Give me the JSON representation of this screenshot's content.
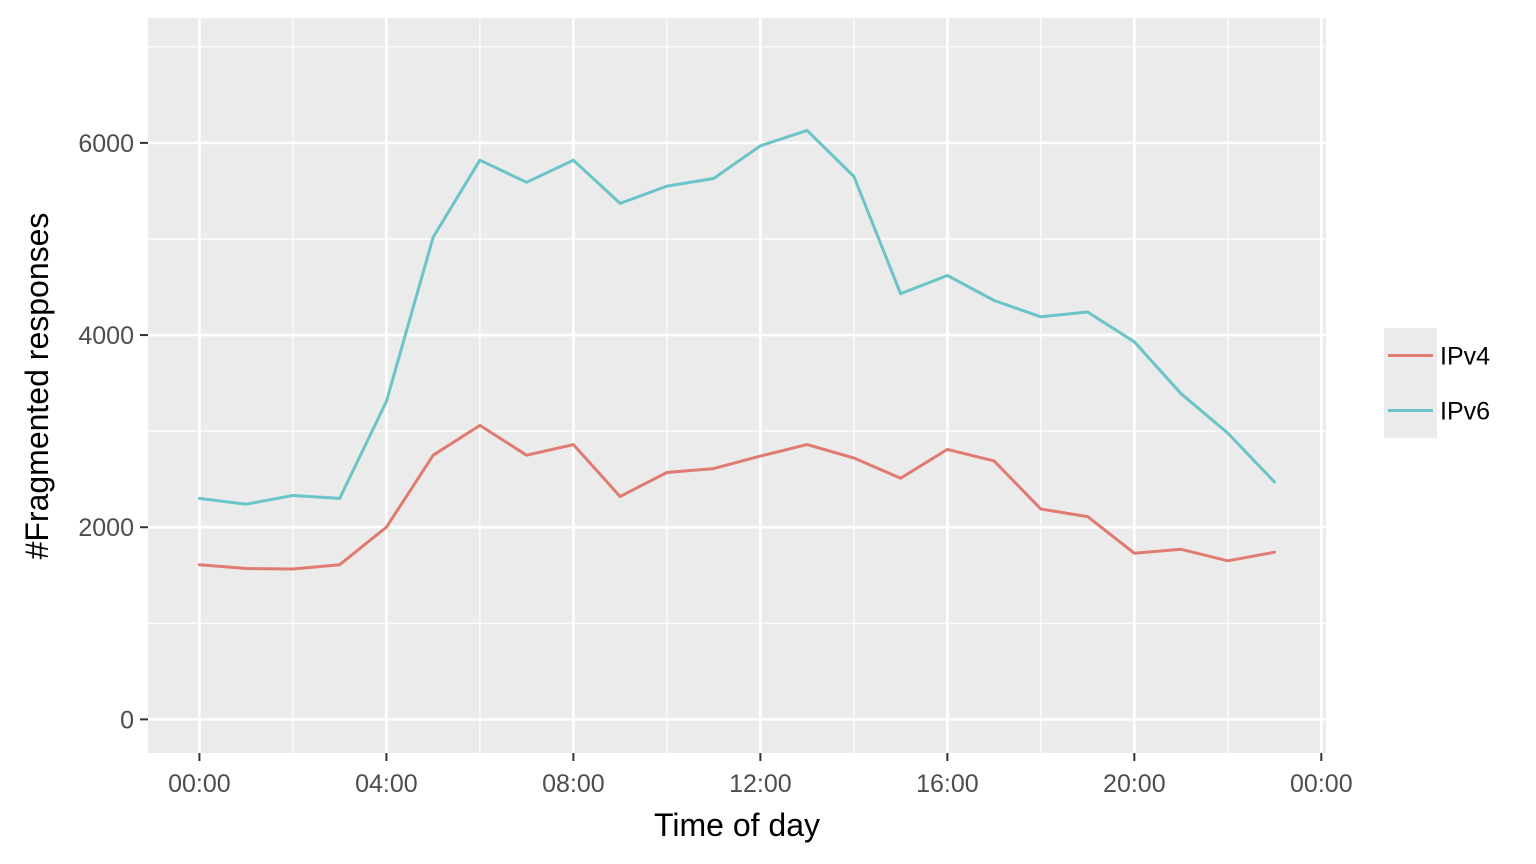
{
  "chart_data": {
    "type": "line",
    "title": "",
    "xlabel": "Time of day",
    "ylabel": "#Fragmented responses",
    "x_unit": "hour",
    "x_ticks": [
      {
        "hour": 0,
        "label": "00:00"
      },
      {
        "hour": 4,
        "label": "04:00"
      },
      {
        "hour": 8,
        "label": "08:00"
      },
      {
        "hour": 12,
        "label": "12:00"
      },
      {
        "hour": 16,
        "label": "16:00"
      },
      {
        "hour": 20,
        "label": "20:00"
      },
      {
        "hour": 24,
        "label": "00:00"
      }
    ],
    "xlim": [
      -1.1,
      24.1
    ],
    "y_ticks": [
      0,
      2000,
      4000,
      6000
    ],
    "ylim": [
      -350,
      7300
    ],
    "grid": true,
    "legend_position": "right",
    "background": "#ebebeb",
    "x": [
      0,
      1,
      2,
      3,
      4,
      5,
      6,
      7,
      8,
      9,
      10,
      11,
      12,
      13,
      14,
      15,
      16,
      17,
      18,
      19,
      20,
      21,
      22,
      23
    ],
    "series": [
      {
        "name": "IPv4",
        "color": "#e07b72",
        "values": [
          1610,
          1570,
          1565,
          1610,
          2000,
          2750,
          3060,
          2750,
          2860,
          2320,
          2570,
          2610,
          2740,
          2860,
          2720,
          2510,
          2810,
          2690,
          2190,
          2110,
          1730,
          1770,
          1650,
          1740
        ]
      },
      {
        "name": "IPv6",
        "color": "#6bc4c7",
        "values": [
          2300,
          2240,
          2330,
          2300,
          3310,
          5020,
          5820,
          5590,
          5820,
          5370,
          5550,
          5630,
          5970,
          6130,
          5650,
          4430,
          4620,
          4360,
          4190,
          4240,
          3930,
          3390,
          2980,
          2470
        ]
      }
    ]
  }
}
